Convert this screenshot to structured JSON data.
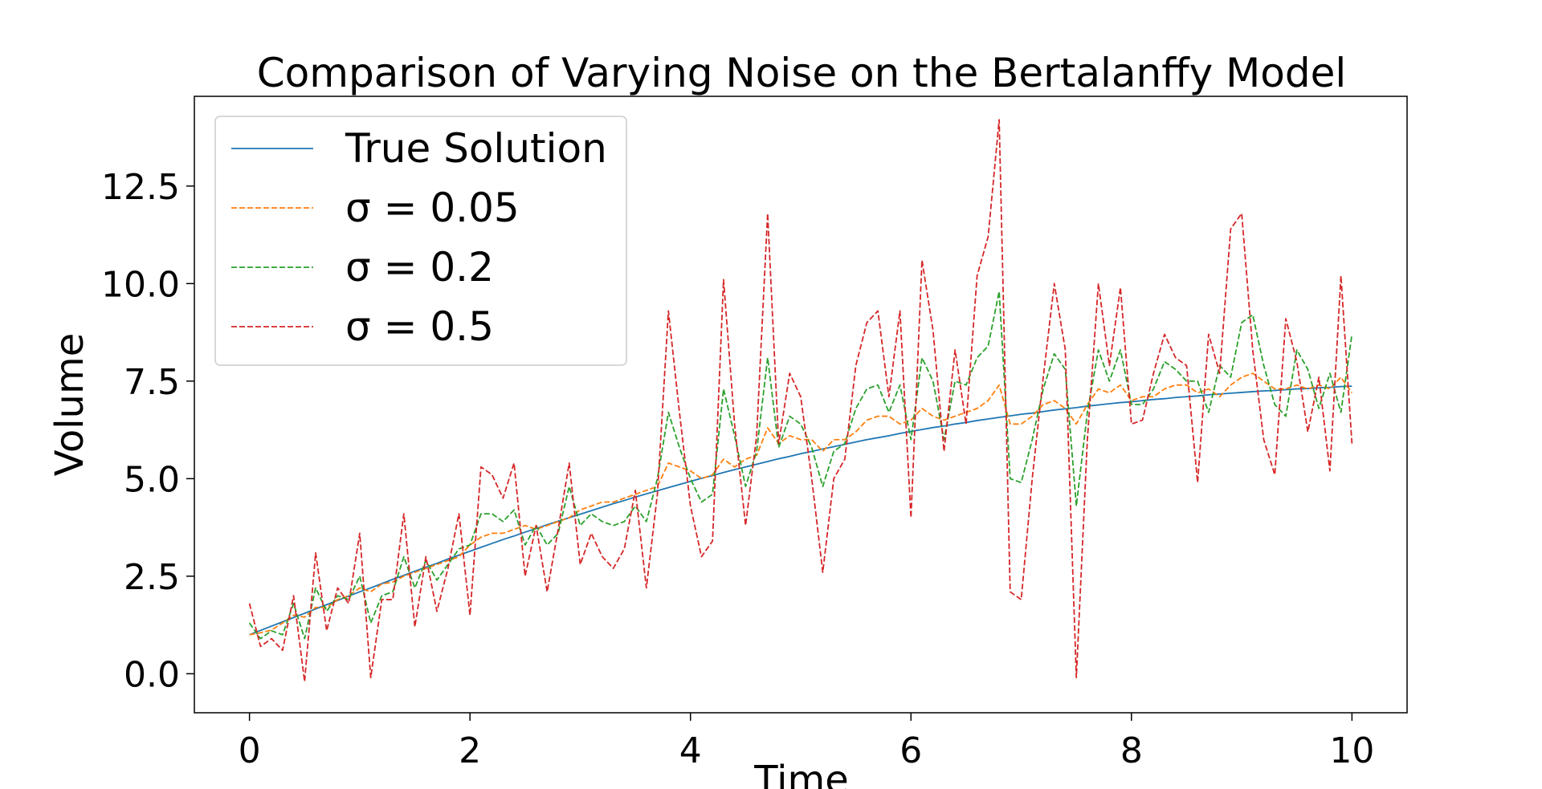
{
  "chart_data": {
    "type": "line",
    "title": "Comparison of Varying Noise on the Bertalanffy Model",
    "xlabel": "Time",
    "ylabel": "Volume",
    "xlim": [
      -0.5,
      10.5
    ],
    "ylim": [
      -1.0,
      14.8
    ],
    "xticks": [
      0,
      2,
      4,
      6,
      8,
      10
    ],
    "xtick_labels": [
      "0",
      "2",
      "4",
      "6",
      "8",
      "10"
    ],
    "yticks": [
      0.0,
      2.5,
      5.0,
      7.5,
      10.0,
      12.5
    ],
    "ytick_labels": [
      "0.0",
      "2.5",
      "5.0",
      "7.5",
      "10.0",
      "12.5"
    ],
    "grid": false,
    "legend_position": "top-left",
    "x": [
      0.0,
      0.1,
      0.2,
      0.3,
      0.4,
      0.5,
      0.6,
      0.7,
      0.8,
      0.9,
      1.0,
      1.1,
      1.2,
      1.3,
      1.4,
      1.5,
      1.6,
      1.7,
      1.8,
      1.9,
      2.0,
      2.1,
      2.2,
      2.3,
      2.4,
      2.5,
      2.6,
      2.7,
      2.8,
      2.9,
      3.0,
      3.1,
      3.2,
      3.3,
      3.4,
      3.5,
      3.6,
      3.7,
      3.8,
      3.9,
      4.0,
      4.1,
      4.2,
      4.3,
      4.4,
      4.5,
      4.6,
      4.7,
      4.8,
      4.9,
      5.0,
      5.1,
      5.2,
      5.3,
      5.4,
      5.5,
      5.6,
      5.7,
      5.8,
      5.9,
      6.0,
      6.1,
      6.2,
      6.3,
      6.4,
      6.5,
      6.6,
      6.7,
      6.8,
      6.9,
      7.0,
      7.1,
      7.2,
      7.3,
      7.4,
      7.5,
      7.6,
      7.7,
      7.8,
      7.9,
      8.0,
      8.1,
      8.2,
      8.3,
      8.4,
      8.5,
      8.6,
      8.7,
      8.8,
      8.9,
      9.0,
      9.1,
      9.2,
      9.3,
      9.4,
      9.5,
      9.6,
      9.7,
      9.8,
      9.9,
      10.0
    ],
    "series": [
      {
        "name": "True Solution",
        "color": "#1f77b4",
        "dash": "solid",
        "values": [
          1.0,
          1.11,
          1.22,
          1.33,
          1.44,
          1.55,
          1.66,
          1.77,
          1.88,
          1.99,
          2.1,
          2.2,
          2.31,
          2.42,
          2.52,
          2.63,
          2.73,
          2.83,
          2.94,
          3.04,
          3.14,
          3.24,
          3.34,
          3.44,
          3.53,
          3.63,
          3.72,
          3.82,
          3.91,
          4.0,
          4.09,
          4.18,
          4.27,
          4.36,
          4.44,
          4.53,
          4.61,
          4.69,
          4.77,
          4.85,
          4.93,
          5.01,
          5.08,
          5.16,
          5.23,
          5.3,
          5.37,
          5.44,
          5.51,
          5.57,
          5.64,
          5.7,
          5.76,
          5.82,
          5.88,
          5.94,
          6.0,
          6.05,
          6.1,
          6.16,
          6.21,
          6.26,
          6.31,
          6.35,
          6.4,
          6.44,
          6.49,
          6.53,
          6.57,
          6.61,
          6.65,
          6.68,
          6.72,
          6.76,
          6.79,
          6.82,
          6.86,
          6.89,
          6.92,
          6.95,
          6.97,
          7.0,
          7.03,
          7.05,
          7.08,
          7.1,
          7.12,
          7.15,
          7.17,
          7.19,
          7.21,
          7.23,
          7.25,
          7.26,
          7.28,
          7.3,
          7.31,
          7.33,
          7.34,
          7.36,
          7.37
        ]
      },
      {
        "name": "σ = 0.05",
        "color": "#ff7f0e",
        "dash": "dashed",
        "values": [
          1.0,
          1.05,
          1.12,
          1.3,
          1.5,
          1.45,
          1.7,
          1.7,
          1.9,
          2.0,
          2.2,
          2.1,
          2.3,
          2.35,
          2.5,
          2.6,
          2.7,
          2.8,
          2.9,
          3.0,
          3.3,
          3.5,
          3.6,
          3.6,
          3.7,
          3.8,
          3.7,
          3.8,
          3.9,
          4.0,
          4.2,
          4.3,
          4.4,
          4.4,
          4.5,
          4.6,
          4.7,
          4.8,
          5.4,
          5.3,
          5.2,
          5.0,
          5.1,
          5.5,
          5.3,
          5.5,
          5.6,
          6.3,
          5.9,
          6.1,
          6.0,
          6.0,
          5.7,
          6.0,
          6.0,
          6.2,
          6.5,
          6.6,
          6.6,
          6.4,
          6.5,
          6.8,
          6.6,
          6.5,
          6.6,
          6.7,
          6.8,
          7.0,
          7.4,
          6.4,
          6.4,
          6.6,
          6.9,
          7.0,
          6.8,
          6.4,
          6.9,
          7.3,
          7.2,
          7.4,
          7.0,
          7.1,
          7.1,
          7.3,
          7.4,
          7.4,
          7.2,
          7.3,
          7.1,
          7.4,
          7.6,
          7.7,
          7.5,
          7.3,
          7.3,
          7.4,
          7.3,
          7.4,
          7.3,
          7.6,
          7.2
        ]
      },
      {
        "name": "σ = 0.2",
        "color": "#2ca02c",
        "dash": "dashed",
        "values": [
          1.3,
          0.9,
          1.1,
          1.0,
          1.8,
          0.9,
          2.2,
          1.6,
          2.0,
          1.9,
          2.5,
          1.3,
          2.0,
          2.1,
          3.0,
          2.2,
          2.9,
          2.4,
          2.8,
          3.2,
          3.3,
          4.1,
          4.1,
          3.9,
          4.2,
          3.3,
          3.8,
          3.3,
          3.6,
          4.8,
          3.8,
          4.1,
          3.9,
          3.8,
          3.9,
          4.3,
          3.9,
          5.0,
          6.7,
          5.8,
          5.0,
          4.4,
          4.6,
          7.3,
          6.1,
          4.8,
          5.7,
          8.1,
          5.8,
          6.6,
          6.4,
          5.8,
          4.8,
          5.7,
          5.9,
          6.8,
          7.3,
          7.4,
          6.7,
          7.4,
          6.0,
          8.1,
          7.5,
          6.0,
          7.5,
          7.4,
          8.1,
          8.4,
          9.8,
          5.0,
          4.9,
          6.0,
          7.3,
          8.2,
          7.8,
          4.3,
          6.7,
          8.3,
          7.5,
          8.3,
          6.9,
          6.9,
          7.3,
          8.0,
          7.8,
          7.5,
          7.5,
          6.7,
          7.9,
          7.6,
          9.0,
          9.2,
          7.9,
          6.9,
          6.6,
          8.3,
          7.8,
          6.8,
          7.7,
          6.7,
          8.7
        ]
      },
      {
        "name": "σ = 0.5",
        "color": "#d62728",
        "dash": "dashed",
        "values": [
          1.8,
          0.7,
          0.9,
          0.6,
          2.0,
          -0.2,
          3.1,
          1.1,
          2.2,
          1.8,
          3.6,
          -0.1,
          1.9,
          1.9,
          4.1,
          1.2,
          3.0,
          1.6,
          2.7,
          4.1,
          1.5,
          5.3,
          5.1,
          4.5,
          5.4,
          2.5,
          3.8,
          2.1,
          3.7,
          5.4,
          2.8,
          3.6,
          3.0,
          2.7,
          3.2,
          4.7,
          2.2,
          4.6,
          9.3,
          6.7,
          4.3,
          3.0,
          3.4,
          10.1,
          6.4,
          3.8,
          6.1,
          11.8,
          5.9,
          7.7,
          7.1,
          5.0,
          2.6,
          5.0,
          5.5,
          7.9,
          9.0,
          9.3,
          7.1,
          9.3,
          4.0,
          10.6,
          8.8,
          5.7,
          8.3,
          6.4,
          10.2,
          11.2,
          14.2,
          2.1,
          1.9,
          5.0,
          7.6,
          10.0,
          8.3,
          -0.1,
          6.0,
          10.0,
          7.9,
          9.9,
          6.4,
          6.5,
          7.7,
          8.7,
          8.1,
          7.9,
          4.9,
          8.7,
          7.7,
          11.4,
          11.8,
          8.3,
          6.0,
          5.1,
          9.1,
          8.0,
          6.2,
          7.6,
          5.2,
          10.2,
          5.9
        ]
      }
    ]
  }
}
